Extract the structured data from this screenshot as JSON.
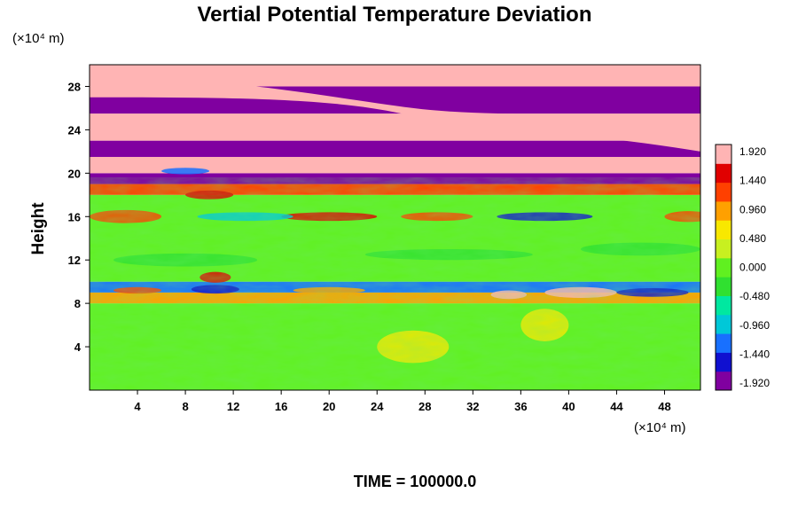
{
  "chart_data": {
    "type": "heatmap",
    "title": "Vertial Potential Temperature Deviation",
    "xlabel": "",
    "ylabel": "Height",
    "x_unit": "(×10⁴ m)",
    "y_unit": "(×10⁴ m)",
    "xlim": [
      0,
      51
    ],
    "ylim": [
      0,
      30
    ],
    "x_ticks": [
      4,
      8,
      12,
      16,
      20,
      24,
      28,
      32,
      36,
      40,
      44,
      48
    ],
    "y_ticks": [
      4,
      8,
      12,
      16,
      20,
      24,
      28
    ],
    "colorbar": {
      "ticks": [
        "1.920",
        "1.440",
        "0.960",
        "0.480",
        "0.000",
        "-0.480",
        "-0.960",
        "-1.440",
        "-1.920"
      ],
      "min": -1.92,
      "max": 1.92,
      "colors": [
        "#8000a0",
        "#1010d0",
        "#1870ff",
        "#00c8d8",
        "#00e8a0",
        "#30e030",
        "#60f020",
        "#c8f020",
        "#f8e800",
        "#ffa000",
        "#ff4000",
        "#e00000",
        "#ffb4b4"
      ]
    },
    "bands": [
      {
        "y": [
          0,
          8
        ],
        "mean": 0.1
      },
      {
        "y": [
          8,
          9
        ],
        "mean": 0.9
      },
      {
        "y": [
          9,
          10
        ],
        "mean": -1.2
      },
      {
        "y": [
          10,
          18
        ],
        "mean": 0.0
      },
      {
        "y": [
          18,
          19
        ],
        "mean": 1.2
      },
      {
        "y": [
          19,
          20
        ],
        "mean": -1.92
      },
      {
        "y": [
          20,
          21.5
        ],
        "mean": 1.92
      },
      {
        "y": [
          21.5,
          23
        ],
        "mean": -1.92
      },
      {
        "y": [
          23,
          25.5
        ],
        "mean": 1.92
      },
      {
        "y": [
          25.5,
          28
        ],
        "mean": -1.92
      },
      {
        "y": [
          28,
          30
        ],
        "mean": 1.92
      }
    ],
    "footer": "TIME = 100000.0"
  }
}
